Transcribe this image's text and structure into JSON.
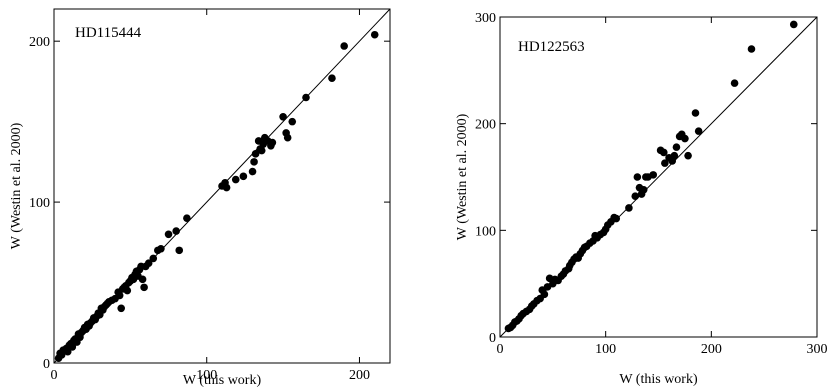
{
  "chart_data": [
    {
      "type": "scatter",
      "label": "HD115444",
      "xlabel": "W (this work)",
      "ylabel": "W (Westin et al. 2000)",
      "xlim": [
        0,
        220
      ],
      "ylim": [
        0,
        220
      ],
      "xticks": [
        0,
        100,
        200
      ],
      "yticks": [
        0,
        100,
        200
      ],
      "identity_line": true,
      "points": [
        [
          3,
          3
        ],
        [
          4,
          6
        ],
        [
          5,
          5
        ],
        [
          6,
          8
        ],
        [
          8,
          9
        ],
        [
          9,
          7
        ],
        [
          10,
          11
        ],
        [
          11,
          12
        ],
        [
          12,
          10
        ],
        [
          13,
          14
        ],
        [
          14,
          15
        ],
        [
          15,
          13
        ],
        [
          16,
          18
        ],
        [
          17,
          16
        ],
        [
          18,
          19
        ],
        [
          19,
          20
        ],
        [
          20,
          22
        ],
        [
          21,
          21
        ],
        [
          22,
          24
        ],
        [
          23,
          23
        ],
        [
          24,
          25
        ],
        [
          25,
          26
        ],
        [
          26,
          28
        ],
        [
          27,
          27
        ],
        [
          28,
          29
        ],
        [
          29,
          31
        ],
        [
          30,
          30
        ],
        [
          31,
          34
        ],
        [
          32,
          33
        ],
        [
          33,
          35
        ],
        [
          34,
          36
        ],
        [
          35,
          37
        ],
        [
          36,
          38
        ],
        [
          38,
          39
        ],
        [
          40,
          40
        ],
        [
          42,
          44
        ],
        [
          43,
          42
        ],
        [
          44,
          34
        ],
        [
          45,
          46
        ],
        [
          46,
          47
        ],
        [
          47,
          48
        ],
        [
          48,
          45
        ],
        [
          49,
          50
        ],
        [
          50,
          51
        ],
        [
          51,
          53
        ],
        [
          52,
          52
        ],
        [
          53,
          55
        ],
        [
          54,
          57
        ],
        [
          55,
          54
        ],
        [
          56,
          58
        ],
        [
          57,
          60
        ],
        [
          58,
          52
        ],
        [
          59,
          47
        ],
        [
          60,
          60
        ],
        [
          62,
          62
        ],
        [
          65,
          65
        ],
        [
          68,
          70
        ],
        [
          70,
          71
        ],
        [
          75,
          80
        ],
        [
          80,
          82
        ],
        [
          82,
          70
        ],
        [
          87,
          90
        ],
        [
          110,
          110
        ],
        [
          112,
          112
        ],
        [
          113,
          109
        ],
        [
          119,
          114
        ],
        [
          124,
          116
        ],
        [
          130,
          119
        ],
        [
          131,
          125
        ],
        [
          132,
          130
        ],
        [
          134,
          138
        ],
        [
          135,
          133
        ],
        [
          136,
          132
        ],
        [
          137,
          136
        ],
        [
          138,
          140
        ],
        [
          140,
          138
        ],
        [
          142,
          135
        ],
        [
          143,
          137
        ],
        [
          150,
          153
        ],
        [
          152,
          143
        ],
        [
          153,
          140
        ],
        [
          156,
          150
        ],
        [
          165,
          165
        ],
        [
          182,
          177
        ],
        [
          190,
          197
        ],
        [
          210,
          204
        ]
      ]
    },
    {
      "type": "scatter",
      "label": "HD122563",
      "xlabel": "W (this work)",
      "ylabel": "W (Westin et al. 2000)",
      "xlim": [
        0,
        300
      ],
      "ylim": [
        0,
        300
      ],
      "xticks": [
        0,
        100,
        200,
        300
      ],
      "yticks": [
        0,
        100,
        200,
        300
      ],
      "identity_line": true,
      "points": [
        [
          8,
          8
        ],
        [
          10,
          9
        ],
        [
          12,
          11
        ],
        [
          14,
          14
        ],
        [
          16,
          15
        ],
        [
          18,
          17
        ],
        [
          20,
          20
        ],
        [
          22,
          22
        ],
        [
          25,
          24
        ],
        [
          28,
          26
        ],
        [
          30,
          29
        ],
        [
          32,
          31
        ],
        [
          35,
          34
        ],
        [
          38,
          36
        ],
        [
          40,
          44
        ],
        [
          42,
          40
        ],
        [
          45,
          47
        ],
        [
          47,
          55
        ],
        [
          50,
          50
        ],
        [
          52,
          54
        ],
        [
          55,
          53
        ],
        [
          58,
          57
        ],
        [
          60,
          59
        ],
        [
          62,
          62
        ],
        [
          65,
          64
        ],
        [
          66,
          67
        ],
        [
          68,
          70
        ],
        [
          70,
          73
        ],
        [
          72,
          75
        ],
        [
          74,
          74
        ],
        [
          76,
          78
        ],
        [
          78,
          81
        ],
        [
          80,
          84
        ],
        [
          82,
          85
        ],
        [
          85,
          88
        ],
        [
          88,
          90
        ],
        [
          90,
          95
        ],
        [
          92,
          93
        ],
        [
          95,
          96
        ],
        [
          98,
          98
        ],
        [
          100,
          101
        ],
        [
          102,
          105
        ],
        [
          105,
          108
        ],
        [
          108,
          112
        ],
        [
          110,
          111
        ],
        [
          122,
          121
        ],
        [
          128,
          132
        ],
        [
          130,
          150
        ],
        [
          132,
          140
        ],
        [
          134,
          134
        ],
        [
          136,
          138
        ],
        [
          138,
          150
        ],
        [
          140,
          150
        ],
        [
          145,
          152
        ],
        [
          152,
          175
        ],
        [
          155,
          173
        ],
        [
          156,
          163
        ],
        [
          160,
          168
        ],
        [
          163,
          165
        ],
        [
          165,
          170
        ],
        [
          167,
          178
        ],
        [
          170,
          188
        ],
        [
          172,
          190
        ],
        [
          175,
          186
        ],
        [
          178,
          170
        ],
        [
          185,
          210
        ],
        [
          188,
          193
        ],
        [
          222,
          238
        ],
        [
          238,
          270
        ],
        [
          278,
          293
        ]
      ]
    }
  ]
}
